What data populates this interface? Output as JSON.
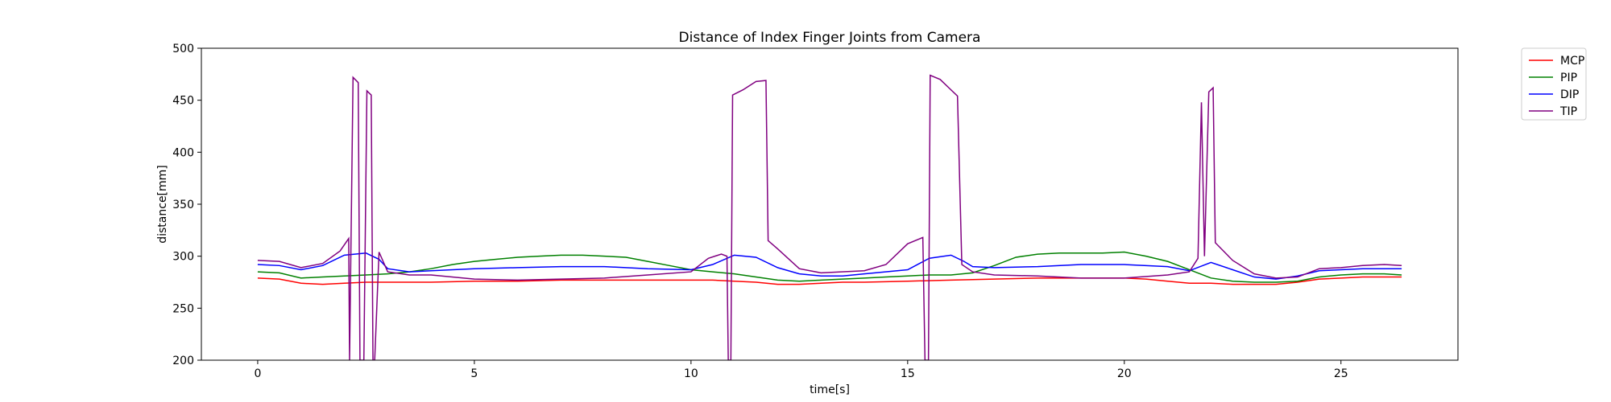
{
  "chart_data": {
    "type": "line",
    "title": "Distance of Index Finger Joints from Camera",
    "xlabel": "time[s]",
    "ylabel": "distance[mm]",
    "xlim": [
      -1.3,
      27.7
    ],
    "ylim": [
      200,
      500
    ],
    "xticks": [
      0,
      5,
      10,
      15,
      20,
      25
    ],
    "yticks": [
      200,
      250,
      300,
      350,
      400,
      450,
      500
    ],
    "grid": false,
    "legend_position": "outside top-right",
    "series": [
      {
        "name": "MCP",
        "color": "#ff0000",
        "points": [
          [
            0,
            279
          ],
          [
            0.5,
            278
          ],
          [
            1,
            274
          ],
          [
            1.5,
            273
          ],
          [
            2,
            274
          ],
          [
            2.5,
            275
          ],
          [
            3,
            275
          ],
          [
            4,
            275
          ],
          [
            5,
            276
          ],
          [
            6,
            276
          ],
          [
            7,
            277
          ],
          [
            8,
            277
          ],
          [
            9,
            277
          ],
          [
            10,
            277
          ],
          [
            10.5,
            277
          ],
          [
            11,
            276
          ],
          [
            11.5,
            275
          ],
          [
            12,
            273
          ],
          [
            12.5,
            273
          ],
          [
            13,
            274
          ],
          [
            13.5,
            275
          ],
          [
            14,
            275
          ],
          [
            15,
            276
          ],
          [
            16,
            277
          ],
          [
            17,
            278
          ],
          [
            18,
            279
          ],
          [
            19,
            279
          ],
          [
            20,
            279
          ],
          [
            20.5,
            278
          ],
          [
            21,
            276
          ],
          [
            21.5,
            274
          ],
          [
            22,
            274
          ],
          [
            22.5,
            273
          ],
          [
            23,
            273
          ],
          [
            23.5,
            273
          ],
          [
            24,
            275
          ],
          [
            24.5,
            278
          ],
          [
            25,
            279
          ],
          [
            25.5,
            280
          ],
          [
            26,
            280
          ],
          [
            26.4,
            280
          ]
        ]
      },
      {
        "name": "PIP",
        "color": "#008000",
        "points": [
          [
            0,
            285
          ],
          [
            0.5,
            284
          ],
          [
            1,
            279
          ],
          [
            1.5,
            280
          ],
          [
            2,
            281
          ],
          [
            2.5,
            282
          ],
          [
            3,
            283
          ],
          [
            3.5,
            285
          ],
          [
            4,
            288
          ],
          [
            4.5,
            292
          ],
          [
            5,
            295
          ],
          [
            5.5,
            297
          ],
          [
            6,
            299
          ],
          [
            6.5,
            300
          ],
          [
            7,
            301
          ],
          [
            7.5,
            301
          ],
          [
            8,
            300
          ],
          [
            8.5,
            299
          ],
          [
            9,
            295
          ],
          [
            9.5,
            291
          ],
          [
            10,
            287
          ],
          [
            10.5,
            285
          ],
          [
            11,
            283
          ],
          [
            11.5,
            280
          ],
          [
            12,
            277
          ],
          [
            12.5,
            276
          ],
          [
            13,
            277
          ],
          [
            13.5,
            278
          ],
          [
            14,
            279
          ],
          [
            14.5,
            280
          ],
          [
            15,
            281
          ],
          [
            15.5,
            282
          ],
          [
            16,
            282
          ],
          [
            16.5,
            284
          ],
          [
            17,
            291
          ],
          [
            17.5,
            299
          ],
          [
            18,
            302
          ],
          [
            18.5,
            303
          ],
          [
            19,
            303
          ],
          [
            19.5,
            303
          ],
          [
            20,
            304
          ],
          [
            20.5,
            300
          ],
          [
            21,
            295
          ],
          [
            21.5,
            287
          ],
          [
            22,
            279
          ],
          [
            22.5,
            276
          ],
          [
            23,
            275
          ],
          [
            23.5,
            275
          ],
          [
            24,
            276
          ],
          [
            24.5,
            280
          ],
          [
            25,
            282
          ],
          [
            25.5,
            283
          ],
          [
            26,
            283
          ],
          [
            26.4,
            282
          ]
        ]
      },
      {
        "name": "DIP",
        "color": "#0000ff",
        "points": [
          [
            0,
            292
          ],
          [
            0.5,
            291
          ],
          [
            1,
            287
          ],
          [
            1.5,
            291
          ],
          [
            2,
            301
          ],
          [
            2.5,
            303
          ],
          [
            2.8,
            297
          ],
          [
            3,
            288
          ],
          [
            3.5,
            285
          ],
          [
            4,
            286
          ],
          [
            5,
            288
          ],
          [
            6,
            289
          ],
          [
            7,
            290
          ],
          [
            8,
            290
          ],
          [
            9,
            288
          ],
          [
            10,
            287
          ],
          [
            10.5,
            292
          ],
          [
            11,
            301
          ],
          [
            11.5,
            299
          ],
          [
            12,
            289
          ],
          [
            12.5,
            283
          ],
          [
            13,
            281
          ],
          [
            13.5,
            281
          ],
          [
            14,
            283
          ],
          [
            15,
            287
          ],
          [
            15.5,
            298
          ],
          [
            16,
            301
          ],
          [
            16.3,
            295
          ],
          [
            16.5,
            290
          ],
          [
            17,
            289
          ],
          [
            18,
            290
          ],
          [
            19,
            292
          ],
          [
            20,
            292
          ],
          [
            21,
            290
          ],
          [
            21.5,
            286
          ],
          [
            22,
            294
          ],
          [
            22.5,
            287
          ],
          [
            23,
            280
          ],
          [
            23.5,
            278
          ],
          [
            24,
            281
          ],
          [
            24.5,
            286
          ],
          [
            25,
            287
          ],
          [
            25.5,
            288
          ],
          [
            26,
            288
          ],
          [
            26.4,
            288
          ]
        ]
      },
      {
        "name": "TIP",
        "color": "#800080",
        "points": [
          [
            0,
            296
          ],
          [
            0.5,
            295
          ],
          [
            1,
            289
          ],
          [
            1.5,
            293
          ],
          [
            1.9,
            305
          ],
          [
            2.1,
            317
          ],
          [
            2.12,
            200
          ],
          [
            2.2,
            472
          ],
          [
            2.32,
            467
          ],
          [
            2.36,
            200
          ],
          [
            2.45,
            200
          ],
          [
            2.52,
            459
          ],
          [
            2.62,
            455
          ],
          [
            2.66,
            200
          ],
          [
            2.7,
            200
          ],
          [
            2.8,
            304
          ],
          [
            3,
            285
          ],
          [
            3.5,
            282
          ],
          [
            4,
            282
          ],
          [
            5,
            278
          ],
          [
            6,
            277
          ],
          [
            7,
            278
          ],
          [
            8,
            279
          ],
          [
            9,
            282
          ],
          [
            10,
            285
          ],
          [
            10.4,
            298
          ],
          [
            10.7,
            302
          ],
          [
            10.83,
            300
          ],
          [
            10.86,
            200
          ],
          [
            10.92,
            200
          ],
          [
            10.96,
            455
          ],
          [
            11.2,
            460
          ],
          [
            11.5,
            468
          ],
          [
            11.73,
            469
          ],
          [
            11.78,
            315
          ],
          [
            12,
            307
          ],
          [
            12.5,
            288
          ],
          [
            13,
            284
          ],
          [
            14,
            286
          ],
          [
            14.5,
            292
          ],
          [
            15,
            312
          ],
          [
            15.35,
            318
          ],
          [
            15.4,
            200
          ],
          [
            15.48,
            200
          ],
          [
            15.52,
            474
          ],
          [
            15.75,
            470
          ],
          [
            16,
            460
          ],
          [
            16.15,
            454
          ],
          [
            16.25,
            292
          ],
          [
            16.5,
            285
          ],
          [
            17,
            282
          ],
          [
            18,
            281
          ],
          [
            19,
            279
          ],
          [
            20,
            279
          ],
          [
            21,
            282
          ],
          [
            21.5,
            285
          ],
          [
            21.7,
            298
          ],
          [
            21.78,
            448
          ],
          [
            21.85,
            300
          ],
          [
            21.95,
            458
          ],
          [
            22.05,
            462
          ],
          [
            22.1,
            313
          ],
          [
            22.5,
            296
          ],
          [
            23,
            283
          ],
          [
            23.5,
            279
          ],
          [
            24,
            280
          ],
          [
            24.5,
            288
          ],
          [
            25,
            289
          ],
          [
            25.5,
            291
          ],
          [
            26,
            292
          ],
          [
            26.4,
            291
          ]
        ]
      }
    ]
  }
}
